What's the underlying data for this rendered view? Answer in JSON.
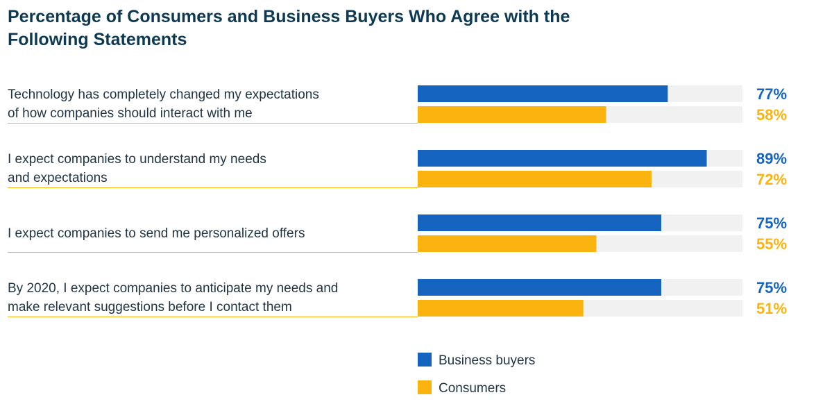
{
  "title": "Percentage of Consumers and Business Buyers Who Agree with the Following Statements",
  "colors": {
    "business": "#1565c0",
    "consumers": "#fbb40f",
    "track": "#f1f1f1",
    "divider": "#fbb40f",
    "text": "#1f3340"
  },
  "chart_data": {
    "type": "bar",
    "orientation": "horizontal",
    "title": "Percentage of Consumers and Business Buyers Who Agree with the Following Statements",
    "xlim": [
      0,
      100
    ],
    "categories": [
      [
        "Technology has completely changed my expectations",
        "of how companies should interact with me"
      ],
      [
        "I expect companies to understand my needs",
        "and expectations"
      ],
      [
        "I expect companies to send me personalized offers"
      ],
      [
        "By 2020, I expect companies to anticipate my needs and",
        "make relevant suggestions before I contact them"
      ]
    ],
    "series": [
      {
        "name": "Business buyers",
        "values": [
          77,
          89,
          75,
          75
        ],
        "labels": [
          "77%",
          "89%",
          "75%",
          "75%"
        ]
      },
      {
        "name": "Consumers",
        "values": [
          58,
          72,
          55,
          51
        ],
        "labels": [
          "58%",
          "72%",
          "55%",
          "51%"
        ]
      }
    ],
    "legend_position": "bottom-center"
  }
}
